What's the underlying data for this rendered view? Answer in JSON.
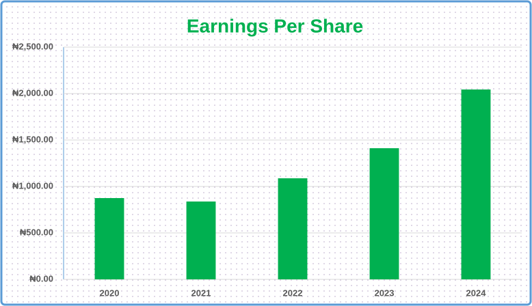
{
  "chart_data": {
    "type": "bar",
    "title": "Earnings Per Share",
    "categories": [
      "2020",
      "2021",
      "2022",
      "2023",
      "2024"
    ],
    "values": [
      875,
      838,
      1088,
      1412,
      2044
    ],
    "color": "#00b050",
    "ylim": [
      0,
      2500
    ],
    "yticks": [
      {
        "value": 0,
        "label": "₦0.00"
      },
      {
        "value": 500,
        "label": "₦500.00"
      },
      {
        "value": 1000,
        "label": "₦1,000.00"
      },
      {
        "value": 1500,
        "label": "₦1,500.00"
      },
      {
        "value": 2000,
        "label": "₦2,000.00"
      },
      {
        "value": 2500,
        "label": "₦2,500.00"
      }
    ],
    "grid": true
  }
}
